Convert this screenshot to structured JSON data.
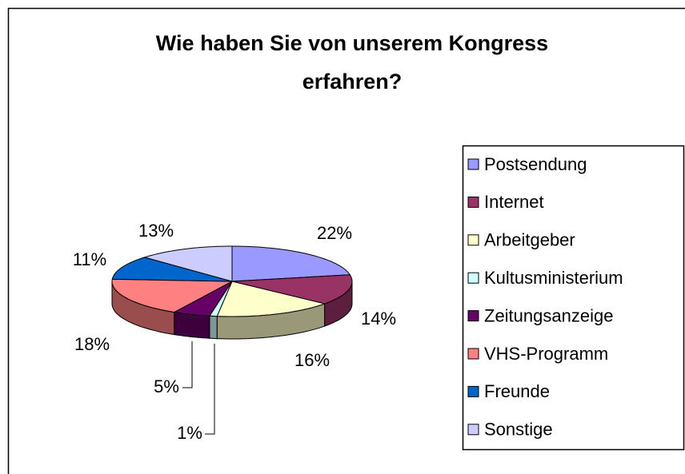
{
  "chart_data": {
    "type": "pie3d",
    "title": "Wie haben Sie von unserem Kongress erfahren?",
    "categories": [
      "Postsendung",
      "Internet",
      "Arbeitgeber",
      "Kultusministerium",
      "Zeitungsanzeige",
      "VHS-Programm",
      "Freunde",
      "Sonstige"
    ],
    "values": [
      22,
      14,
      16,
      1,
      5,
      18,
      11,
      13
    ],
    "value_labels": [
      "22%",
      "14%",
      "16%",
      "1%",
      "5%",
      "18%",
      "11%",
      "13%"
    ],
    "colors": [
      "#9999ff",
      "#993366",
      "#ffffcc",
      "#ccffff",
      "#660066",
      "#ff8080",
      "#0066cc",
      "#ccccff"
    ],
    "legend": "right"
  }
}
